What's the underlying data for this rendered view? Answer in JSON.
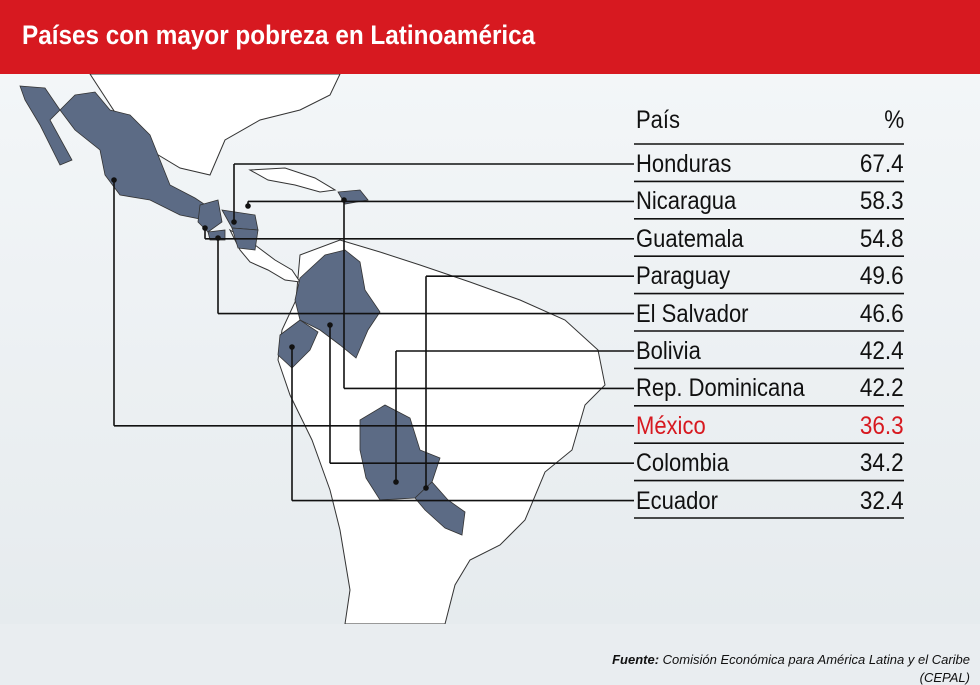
{
  "header": {
    "title": "Países con mayor pobreza en Latinoamérica"
  },
  "table": {
    "country_header": "País",
    "value_header": "%"
  },
  "chart_data": {
    "type": "table",
    "title": "Países con mayor pobreza en Latinoamérica",
    "columns": [
      "País",
      "%"
    ],
    "rows": [
      {
        "country": "Honduras",
        "value": 67.4,
        "display": "67.4"
      },
      {
        "country": "Nicaragua",
        "value": 58.3,
        "display": "58.3"
      },
      {
        "country": "Guatemala",
        "value": 54.8,
        "display": "54.8"
      },
      {
        "country": "Paraguay",
        "value": 49.6,
        "display": "49.6"
      },
      {
        "country": "El Salvador",
        "value": 46.6,
        "display": "46.6"
      },
      {
        "country": "Bolivia",
        "value": 42.4,
        "display": "42.4"
      },
      {
        "country": "Rep. Dominicana",
        "value": 42.2,
        "display": "42.2"
      },
      {
        "country": "México",
        "value": 36.3,
        "display": "36.3",
        "highlight": true
      },
      {
        "country": "Colombia",
        "value": 34.2,
        "display": "34.2"
      },
      {
        "country": "Ecuador",
        "value": 32.4,
        "display": "32.4"
      }
    ]
  },
  "source": {
    "label": "Fuente:",
    "text": "Comisión Económica para América Latina y el Caribe",
    "text2": "(CEPAL)"
  },
  "colors": {
    "brand_red": "#d71920",
    "country_fill": "#5c6b85",
    "highlight_text": "#d71920",
    "leader_line": "#111111"
  }
}
